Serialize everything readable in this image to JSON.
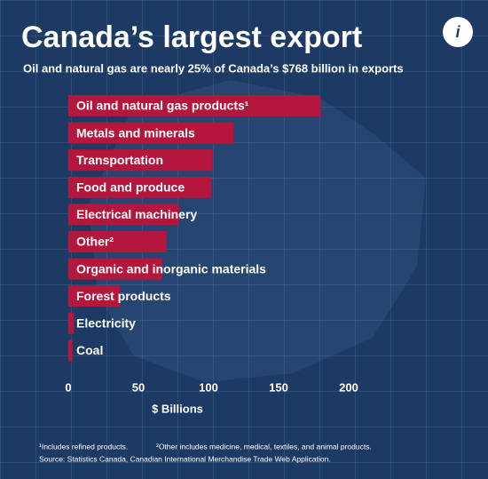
{
  "chart_data": {
    "type": "bar",
    "orientation": "horizontal",
    "title": "Canada’s largest export",
    "subtitle": "Oil and natural gas are nearly 25% of Canada’s $768 billion in exports",
    "info_button": "i",
    "categories": [
      "Oil and natural gas products¹",
      "Metals and minerals",
      "Transportation",
      "Food and produce",
      "Electrical machinery",
      "Other²",
      "Organic and inorganic materials",
      "Forest products",
      "Electricity",
      "Coal"
    ],
    "values": [
      180,
      118,
      103,
      102,
      79,
      70,
      67,
      37,
      4,
      3
    ],
    "color": "#b5163b",
    "xlim": [
      0,
      250
    ],
    "xticks": [
      0,
      50,
      100,
      150,
      200
    ],
    "xlabel": "$ Billions",
    "footnotes": [
      "¹Includes refined products.",
      "²Other includes medicine, medical, textiles, and animal products."
    ],
    "source": "Source: Statistics Canada, Canadian International Merchandise Trade Web Application."
  }
}
